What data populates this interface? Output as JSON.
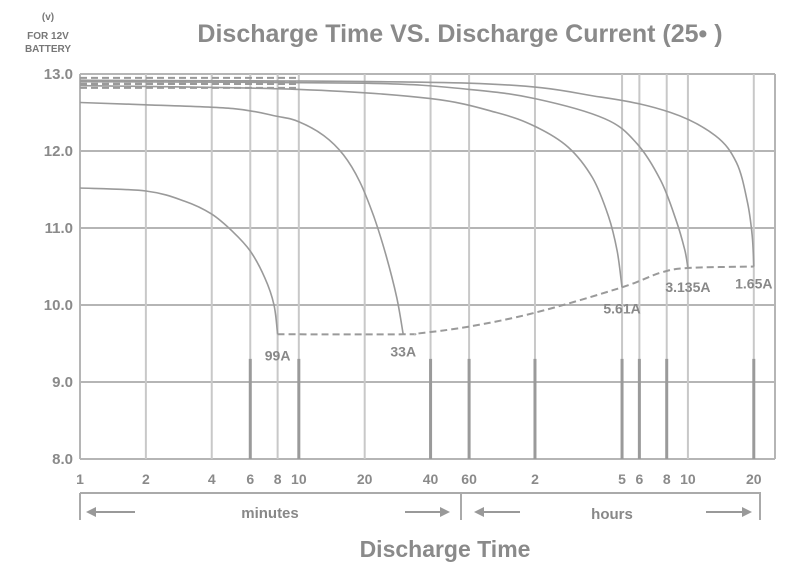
{
  "chart_data": {
    "type": "line",
    "title": "Discharge Time VS. Discharge Current (25•  )",
    "y_unit_lines": [
      "(v)",
      "FOR 12V",
      "BATTERY"
    ],
    "xlabel": "Discharge Time",
    "ylim": [
      8.0,
      13.0
    ],
    "y_ticks": [
      "13.0",
      "12.0",
      "11.0",
      "10.0",
      "9.0",
      "8.0"
    ],
    "x_scale": "log",
    "x_range_minutes": [
      1,
      1500
    ],
    "x_ticks": [
      {
        "label": "1",
        "minutes": 1
      },
      {
        "label": "2",
        "minutes": 2
      },
      {
        "label": "4",
        "minutes": 4
      },
      {
        "label": "6",
        "minutes": 6
      },
      {
        "label": "8",
        "minutes": 8
      },
      {
        "label": "10",
        "minutes": 10
      },
      {
        "label": "20",
        "minutes": 20
      },
      {
        "label": "40",
        "minutes": 40
      },
      {
        "label": "60",
        "minutes": 60
      },
      {
        "label": "2",
        "minutes": 120
      },
      {
        "label": "5",
        "minutes": 300
      },
      {
        "label": "6",
        "minutes": 360
      },
      {
        "label": "8",
        "minutes": 480
      },
      {
        "label": "10",
        "minutes": 600
      },
      {
        "label": "20",
        "minutes": 1200
      }
    ],
    "segments": [
      {
        "label": "minutes",
        "from_minutes": 1,
        "to_minutes": 60
      },
      {
        "label": "hours",
        "from_minutes": 60,
        "to_minutes": 1500
      }
    ],
    "grid": true,
    "series": [
      {
        "name": "99A",
        "points": [
          [
            1,
            11.52
          ],
          [
            2,
            11.48
          ],
          [
            3,
            11.35
          ],
          [
            4,
            11.18
          ],
          [
            5,
            10.95
          ],
          [
            6,
            10.7
          ],
          [
            7,
            10.35
          ],
          [
            7.7,
            10.0
          ],
          [
            8,
            9.62
          ]
        ]
      },
      {
        "name": "33A",
        "points": [
          [
            1,
            12.63
          ],
          [
            2,
            12.6
          ],
          [
            5,
            12.55
          ],
          [
            8,
            12.45
          ],
          [
            10,
            12.38
          ],
          [
            13,
            12.2
          ],
          [
            16,
            11.95
          ],
          [
            19,
            11.6
          ],
          [
            22,
            11.15
          ],
          [
            25,
            10.65
          ],
          [
            28,
            10.1
          ],
          [
            30,
            9.62
          ]
        ]
      },
      {
        "name": "5.61A",
        "points": [
          [
            1,
            12.85
          ],
          [
            10,
            12.8
          ],
          [
            40,
            12.68
          ],
          [
            80,
            12.5
          ],
          [
            120,
            12.32
          ],
          [
            170,
            12.05
          ],
          [
            220,
            11.65
          ],
          [
            260,
            11.15
          ],
          [
            285,
            10.7
          ],
          [
            300,
            10.23
          ]
        ]
      },
      {
        "name": "3.135A",
        "points": [
          [
            1,
            12.9
          ],
          [
            20,
            12.88
          ],
          [
            60,
            12.8
          ],
          [
            120,
            12.68
          ],
          [
            250,
            12.42
          ],
          [
            350,
            12.1
          ],
          [
            450,
            11.62
          ],
          [
            530,
            11.1
          ],
          [
            580,
            10.72
          ],
          [
            600,
            10.48
          ]
        ]
      },
      {
        "name": "1.65A",
        "points": [
          [
            1,
            12.92
          ],
          [
            60,
            12.88
          ],
          [
            240,
            12.7
          ],
          [
            500,
            12.5
          ],
          [
            800,
            12.2
          ],
          [
            1000,
            11.85
          ],
          [
            1120,
            11.35
          ],
          [
            1180,
            10.9
          ],
          [
            1200,
            10.5
          ]
        ]
      }
    ],
    "end_voltage_line": [
      [
        8,
        9.62
      ],
      [
        30,
        9.62
      ],
      [
        35,
        9.63
      ],
      [
        60,
        9.72
      ],
      [
        120,
        9.9
      ],
      [
        300,
        10.23
      ],
      [
        450,
        10.42
      ],
      [
        600,
        10.48
      ],
      [
        1200,
        10.5
      ]
    ],
    "initial_voltage_lines": [
      12.95,
      12.9,
      12.87,
      12.82
    ]
  }
}
